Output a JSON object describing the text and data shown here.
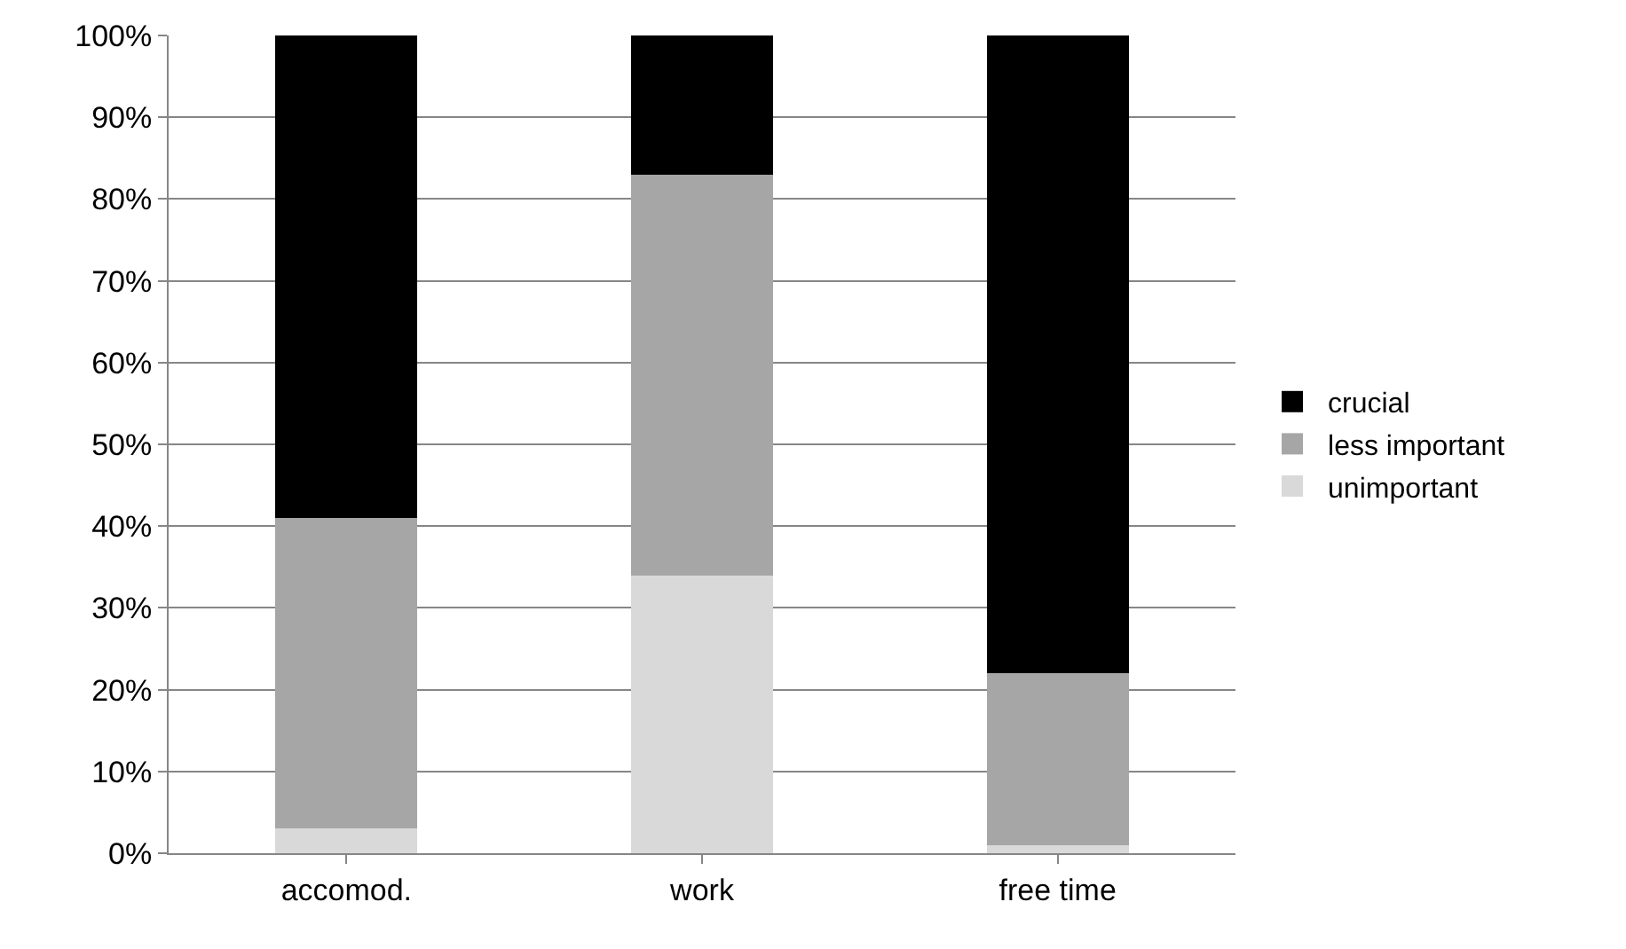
{
  "chart_data": {
    "type": "bar",
    "stacked": true,
    "categories": [
      "accomod.",
      "work",
      "free time"
    ],
    "series": [
      {
        "name": "unimportant",
        "color": "#d9d9d9",
        "values": [
          3,
          34,
          1
        ]
      },
      {
        "name": "less important",
        "color": "#a6a6a6",
        "values": [
          38,
          49,
          21
        ]
      },
      {
        "name": "crucial",
        "color": "#000000",
        "values": [
          59,
          17,
          78
        ]
      }
    ],
    "ylim": [
      0,
      100
    ],
    "yticks": [
      {
        "value": 0,
        "label": "0%"
      },
      {
        "value": 10,
        "label": "10%"
      },
      {
        "value": 20,
        "label": "20%"
      },
      {
        "value": 30,
        "label": "30%"
      },
      {
        "value": 40,
        "label": "40%"
      },
      {
        "value": 50,
        "label": "50%"
      },
      {
        "value": 60,
        "label": "60%"
      },
      {
        "value": 70,
        "label": "70%"
      },
      {
        "value": 80,
        "label": "80%"
      },
      {
        "value": 90,
        "label": "90%"
      },
      {
        "value": 100,
        "label": "100%"
      }
    ],
    "grid": "y",
    "legend": "right"
  }
}
